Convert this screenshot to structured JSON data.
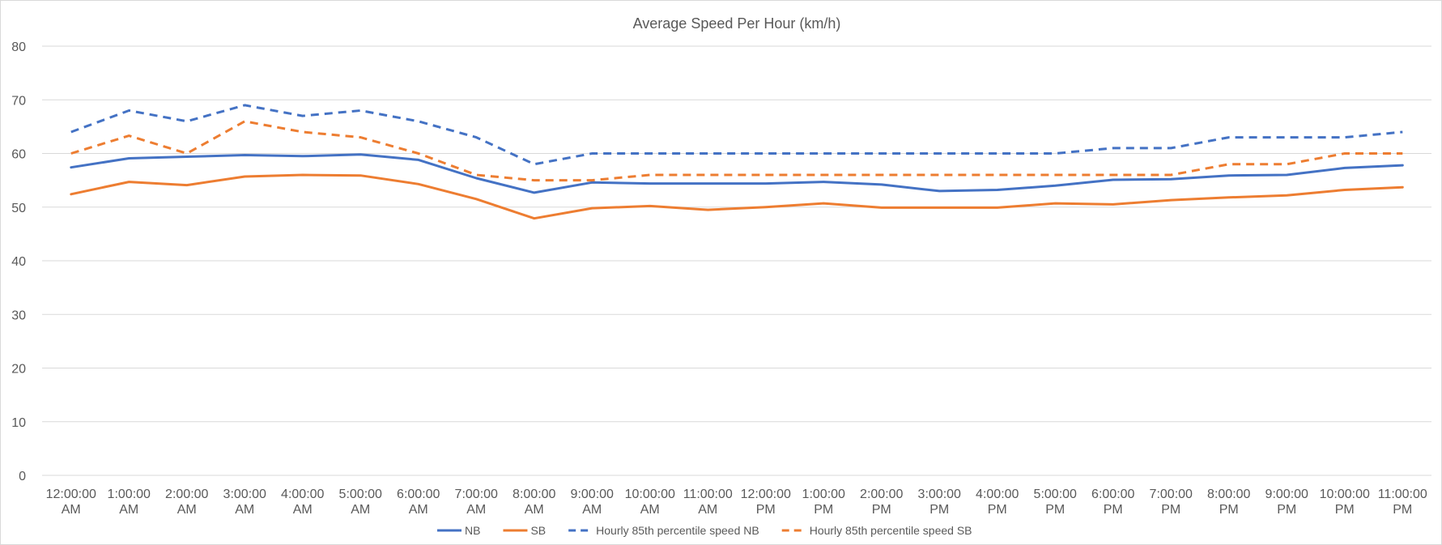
{
  "chart_data": {
    "type": "line",
    "title": "Average Speed Per Hour (km/h)",
    "xlabel": "",
    "ylabel": "",
    "ylim": [
      0,
      80
    ],
    "yticks": [
      "0",
      "10",
      "20",
      "30",
      "40",
      "50",
      "60",
      "70",
      "80"
    ],
    "grid": true,
    "legend_position": "bottom",
    "categories": [
      [
        "12:00:00",
        "AM"
      ],
      [
        "1:00:00",
        "AM"
      ],
      [
        "2:00:00",
        "AM"
      ],
      [
        "3:00:00",
        "AM"
      ],
      [
        "4:00:00",
        "AM"
      ],
      [
        "5:00:00",
        "AM"
      ],
      [
        "6:00:00",
        "AM"
      ],
      [
        "7:00:00",
        "AM"
      ],
      [
        "8:00:00",
        "AM"
      ],
      [
        "9:00:00",
        "AM"
      ],
      [
        "10:00:00",
        "AM"
      ],
      [
        "11:00:00",
        "AM"
      ],
      [
        "12:00:00",
        "PM"
      ],
      [
        "1:00:00",
        "PM"
      ],
      [
        "2:00:00",
        "PM"
      ],
      [
        "3:00:00",
        "PM"
      ],
      [
        "4:00:00",
        "PM"
      ],
      [
        "5:00:00",
        "PM"
      ],
      [
        "6:00:00",
        "PM"
      ],
      [
        "7:00:00",
        "PM"
      ],
      [
        "8:00:00",
        "PM"
      ],
      [
        "9:00:00",
        "PM"
      ],
      [
        "10:00:00",
        "PM"
      ],
      [
        "11:00:00",
        "PM"
      ]
    ],
    "series": [
      {
        "name": "NB",
        "color": "#4472C4",
        "dashed": false,
        "values": [
          57.4,
          59.1,
          59.4,
          59.7,
          59.5,
          59.8,
          58.8,
          55.4,
          52.7,
          54.6,
          54.4,
          54.4,
          54.4,
          54.7,
          54.2,
          53.0,
          53.2,
          54.0,
          55.1,
          55.2,
          55.9,
          56.0,
          57.3,
          57.8
        ]
      },
      {
        "name": "SB",
        "color": "#ED7D31",
        "dashed": false,
        "values": [
          52.4,
          54.7,
          54.1,
          55.7,
          56.0,
          55.9,
          54.3,
          51.5,
          47.9,
          49.8,
          50.2,
          49.5,
          50.0,
          50.7,
          49.9,
          49.9,
          49.9,
          50.7,
          50.5,
          51.3,
          51.8,
          52.2,
          53.2,
          53.7
        ]
      },
      {
        "name": "Hourly 85th percentile speed NB",
        "color": "#4472C4",
        "dashed": true,
        "values": [
          64,
          68,
          66,
          69,
          67,
          68,
          66,
          63,
          58,
          60,
          60,
          60,
          60,
          60,
          60,
          60,
          60,
          60,
          61,
          61,
          63,
          63,
          63,
          64
        ]
      },
      {
        "name": "Hourly 85th percentile speed SB",
        "color": "#ED7D31",
        "dashed": true,
        "values": [
          60,
          63.3,
          60,
          66,
          64,
          63,
          60,
          56,
          55,
          55,
          56,
          56,
          56,
          56,
          56,
          56,
          56,
          56,
          56,
          56,
          58,
          58,
          60,
          60
        ]
      }
    ]
  }
}
